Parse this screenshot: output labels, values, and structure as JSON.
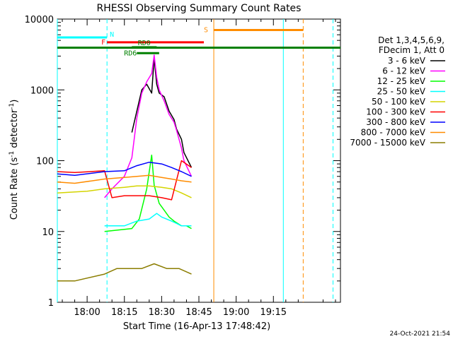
{
  "chart_data": {
    "type": "line",
    "title": "RHESSI Observing Summary Count Rates",
    "xlabel": "Start Time (16-Apr-13 17:48:42)",
    "ylabel_main": "Count Rate (s",
    "ylabel_sup1": "-1",
    "ylabel_mid": " detector",
    "ylabel_sup2": "-1",
    "ylabel_end": ")",
    "yscale": "log",
    "xlim_min": [
      -12,
      48
    ],
    "ylim": [
      1,
      10000
    ],
    "x_ticks": [
      {
        "value": 0,
        "label": "18:00"
      },
      {
        "value": 15,
        "label": "18:15"
      },
      {
        "value": 30,
        "label": "18:30"
      },
      {
        "value": 45,
        "label": "18:45"
      },
      {
        "value": 60,
        "label": "19:00"
      },
      {
        "value": 75,
        "label": "19:15"
      }
    ],
    "y_ticks": [
      {
        "value": 1,
        "label": "1"
      },
      {
        "value": 10,
        "label": "10"
      },
      {
        "value": 100,
        "label": "100"
      },
      {
        "value": 1000,
        "label": "1000"
      },
      {
        "value": 10000,
        "label": "10000"
      }
    ],
    "legend_header": [
      "Det 1,3,4,5,6,9,",
      "FDecim 1, Att 0"
    ],
    "series": [
      {
        "name": "3 - 6 keV",
        "color": "#000000",
        "x": [
          18,
          20,
          22,
          24,
          26,
          27,
          28,
          29,
          31,
          33,
          35,
          36,
          38,
          39,
          42
        ],
        "y": [
          250,
          500,
          1000,
          1200,
          900,
          2800,
          1200,
          900,
          800,
          500,
          380,
          280,
          200,
          130,
          80
        ]
      },
      {
        "name": "6 - 12 keV",
        "color": "#ff00ff",
        "x": [
          7,
          10,
          15,
          18,
          20,
          22,
          24,
          26,
          27,
          28,
          29,
          31,
          33,
          35,
          36,
          38,
          39,
          42
        ],
        "y": [
          30,
          40,
          60,
          110,
          400,
          900,
          1300,
          1700,
          3100,
          1500,
          1000,
          700,
          450,
          350,
          270,
          150,
          100,
          60
        ]
      },
      {
        "name": "12 - 25 keV",
        "color": "#00ff00",
        "x": [
          7,
          18,
          21,
          24,
          26,
          27,
          29,
          31,
          33,
          35,
          38,
          40,
          42
        ],
        "y": [
          10,
          11,
          15,
          40,
          120,
          45,
          25,
          20,
          16,
          14,
          12,
          12,
          11
        ]
      },
      {
        "name": "25 - 50 keV",
        "color": "#00ffff",
        "x": [
          7,
          15,
          20,
          25,
          28,
          30,
          34,
          36,
          38,
          42
        ],
        "y": [
          12,
          12,
          14,
          15,
          18,
          16,
          14,
          13,
          12,
          12
        ]
      },
      {
        "name": "50 - 100 keV",
        "color": "#d4d400",
        "x": [
          -12,
          0,
          7,
          15,
          20,
          25,
          30,
          34,
          38,
          42
        ],
        "y": [
          35,
          37,
          40,
          42,
          44,
          44,
          42,
          40,
          35,
          30
        ]
      },
      {
        "name": "100 - 300 keV",
        "color": "#ff0000",
        "x": [
          -12,
          -5,
          7,
          10,
          15,
          20,
          25,
          30,
          34,
          38,
          42
        ],
        "y": [
          70,
          68,
          72,
          30,
          32,
          32,
          32,
          30,
          28,
          100,
          80
        ]
      },
      {
        "name": "300 - 800 keV",
        "color": "#0000ff",
        "x": [
          -12,
          -5,
          7,
          15,
          20,
          25,
          30,
          34,
          38,
          42
        ],
        "y": [
          65,
          62,
          70,
          72,
          85,
          95,
          90,
          80,
          70,
          60
        ]
      },
      {
        "name": "800 - 7000 keV",
        "color": "#ff8c00",
        "x": [
          -12,
          -5,
          7,
          15,
          20,
          25,
          30,
          34,
          38,
          42
        ],
        "y": [
          50,
          48,
          55,
          58,
          60,
          62,
          58,
          55,
          52,
          50
        ]
      },
      {
        "name": "7000 - 15000 keV",
        "color": "#8b7d00",
        "x": [
          -12,
          -5,
          7,
          12,
          17,
          22,
          27,
          32,
          37,
          42
        ],
        "y": [
          2,
          2,
          2.5,
          3,
          3,
          3,
          3.5,
          3,
          3,
          2.5
        ]
      }
    ],
    "segments": [
      {
        "name": "N",
        "color": "#00ffff",
        "from": -12,
        "to": 8,
        "level": 5500
      },
      {
        "name": "F",
        "color": "#ff0000",
        "from": 8,
        "to": 47,
        "level": 4700
      },
      {
        "name": "S",
        "color": "#ff8c00",
        "from": 51,
        "to": 87,
        "level": 7000
      },
      {
        "name": "RD0",
        "color": "#008000",
        "from": 18,
        "to": 28,
        "level": 4000
      },
      {
        "name": "RD6",
        "color": "#008000",
        "from": 20,
        "to": 29,
        "level": 3300
      }
    ],
    "vertical_markers": [
      {
        "x": -12,
        "color": "#00ffff",
        "dashed": false
      },
      {
        "x": 8,
        "color": "#00ffff",
        "dashed": true
      },
      {
        "x": 51,
        "color": "#ff8c00",
        "dashed": false
      },
      {
        "x": 79,
        "color": "#00ffff",
        "dashed": false
      },
      {
        "x": 87,
        "color": "#ff8c00",
        "dashed": true
      },
      {
        "x": 99,
        "color": "#00ffff",
        "dashed": true
      }
    ],
    "footer_timestamp": "24-Oct-2021 21:54"
  }
}
